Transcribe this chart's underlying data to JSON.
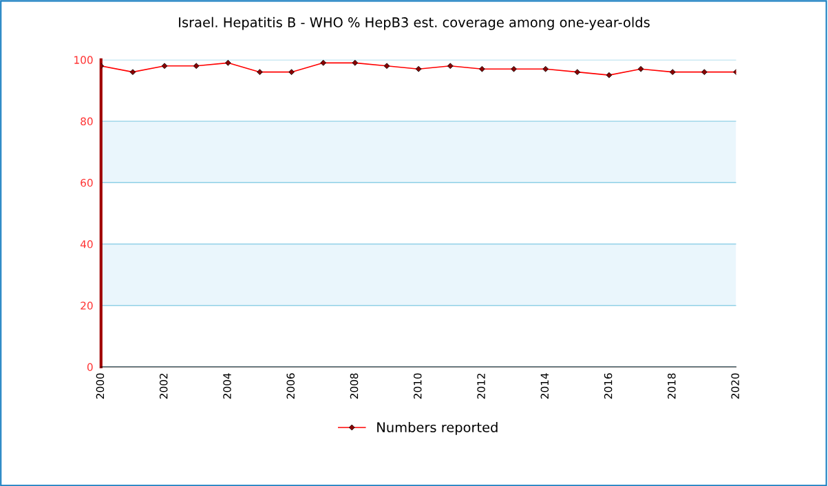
{
  "chart_data": {
    "type": "line",
    "title": "Israel. Hepatitis B - WHO % HepB3 est. coverage among one-year-olds",
    "x": [
      2000,
      2001,
      2002,
      2003,
      2004,
      2005,
      2006,
      2007,
      2008,
      2009,
      2010,
      2011,
      2012,
      2013,
      2014,
      2015,
      2016,
      2017,
      2018,
      2019,
      2020
    ],
    "series": [
      {
        "name": "Numbers reported",
        "color": "#ff0000",
        "values": [
          98,
          96,
          98,
          98,
          99,
          96,
          96,
          99,
          99,
          98,
          97,
          98,
          97,
          97,
          97,
          96,
          95,
          97,
          96,
          96,
          96
        ]
      }
    ],
    "xlim": [
      2000,
      2020
    ],
    "xticks": [
      2000,
      2002,
      2004,
      2006,
      2008,
      2010,
      2012,
      2014,
      2016,
      2018,
      2020
    ],
    "ylim": [
      0,
      100
    ],
    "yticks": [
      0,
      20,
      40,
      60,
      80,
      100
    ],
    "bands": [
      {
        "axis": "y",
        "from": 20,
        "to": 40,
        "color": "#eaf6fc"
      },
      {
        "axis": "y",
        "from": 60,
        "to": 80,
        "color": "#eaf6fc"
      }
    ],
    "grid": "y",
    "legend": "bottom",
    "marker": "diamond",
    "line_style": "solid"
  }
}
